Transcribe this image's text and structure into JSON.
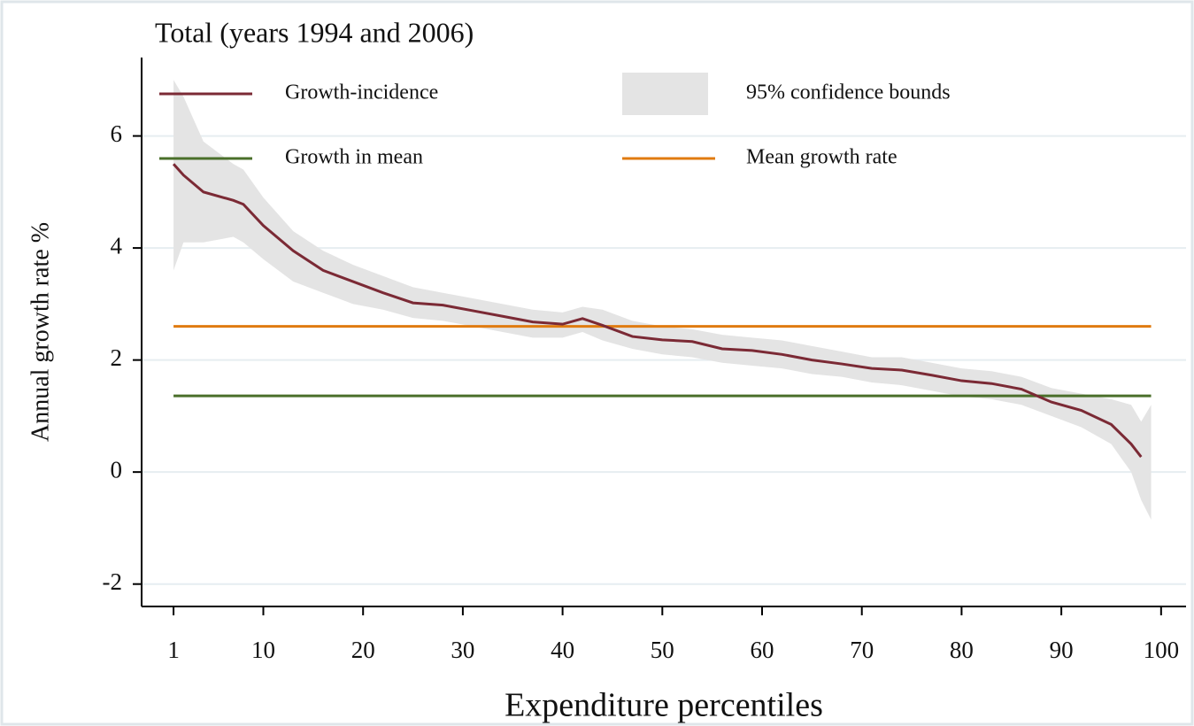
{
  "chart_data": {
    "type": "line",
    "title": "Total (years 1994 and 2006)",
    "x_label": "Expenditure percentiles",
    "y_label": "Annual growth rate %",
    "x": [
      1,
      2,
      4,
      7,
      8,
      10,
      13,
      16,
      19,
      22,
      25,
      28,
      31,
      34,
      37,
      40,
      42,
      44,
      47,
      50,
      53,
      56,
      59,
      62,
      65,
      68,
      71,
      74,
      77,
      80,
      83,
      86,
      89,
      92,
      95,
      97,
      98,
      99
    ],
    "series": [
      {
        "name": "Growth-incidence",
        "kind": "line",
        "color": "#7b2a35",
        "values": [
          5.5,
          5.3,
          5.0,
          4.85,
          4.78,
          4.4,
          3.95,
          3.6,
          3.4,
          3.2,
          3.02,
          2.98,
          2.88,
          2.78,
          2.68,
          2.64,
          2.74,
          2.62,
          2.42,
          2.36,
          2.33,
          2.2,
          2.17,
          2.1,
          2.0,
          1.93,
          1.85,
          1.82,
          1.73,
          1.63,
          1.58,
          1.48,
          1.25,
          1.1,
          0.85,
          0.5,
          0.27,
          null
        ]
      },
      {
        "name": "95% confidence bounds",
        "kind": "band",
        "color": "#e4e4e4",
        "upper": [
          7.0,
          6.7,
          5.9,
          5.5,
          5.4,
          4.9,
          4.3,
          3.95,
          3.7,
          3.5,
          3.3,
          3.2,
          3.1,
          3.0,
          2.9,
          2.85,
          2.95,
          2.9,
          2.7,
          2.6,
          2.55,
          2.45,
          2.4,
          2.35,
          2.25,
          2.15,
          2.05,
          2.05,
          1.95,
          1.85,
          1.8,
          1.7,
          1.5,
          1.4,
          1.3,
          1.2,
          0.9,
          1.2
        ],
        "lower": [
          3.6,
          4.1,
          4.1,
          4.2,
          4.1,
          3.8,
          3.4,
          3.2,
          3.0,
          2.9,
          2.75,
          2.7,
          2.6,
          2.5,
          2.4,
          2.4,
          2.5,
          2.35,
          2.2,
          2.1,
          2.05,
          1.95,
          1.9,
          1.85,
          1.75,
          1.7,
          1.6,
          1.55,
          1.45,
          1.35,
          1.3,
          1.2,
          1.0,
          0.8,
          0.5,
          0.0,
          -0.5,
          -0.85
        ]
      },
      {
        "name": "Growth in mean",
        "kind": "hline",
        "color": "#4a6f2a",
        "value": 1.36
      },
      {
        "name": "Mean growth rate",
        "kind": "hline",
        "color": "#e07b10",
        "value": 2.6
      }
    ],
    "xlim": [
      -2.2,
      102.5
    ],
    "xticks": [
      1,
      10,
      20,
      30,
      40,
      50,
      60,
      70,
      80,
      90,
      100
    ],
    "ylim": [
      -2.4,
      7.4
    ],
    "yticks": [
      -2,
      0,
      2,
      4,
      6
    ],
    "grid": true,
    "legend": "top"
  }
}
